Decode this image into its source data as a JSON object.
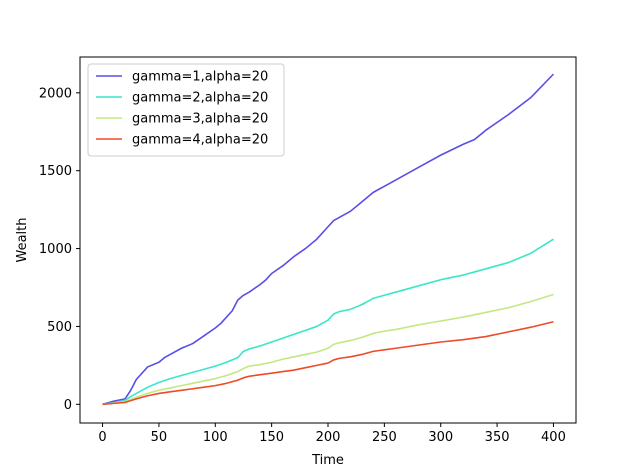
{
  "chart_data": {
    "type": "line",
    "title": "",
    "xlabel": "Time",
    "ylabel": "Wealth",
    "xlim": [
      -20,
      420
    ],
    "ylim": [
      -120,
      2230
    ],
    "xticks": [
      0,
      50,
      100,
      150,
      200,
      250,
      300,
      350,
      400
    ],
    "yticks": [
      0,
      500,
      1000,
      1500,
      2000
    ],
    "grid": false,
    "legend_position": "top-left",
    "series": [
      {
        "name": "gamma=1,alpha=20",
        "color": "#5a4ee6",
        "x": [
          0,
          10,
          20,
          25,
          30,
          40,
          50,
          55,
          60,
          70,
          80,
          90,
          100,
          105,
          110,
          115,
          120,
          125,
          130,
          140,
          145,
          150,
          160,
          170,
          180,
          190,
          200,
          205,
          210,
          220,
          230,
          240,
          250,
          260,
          280,
          300,
          320,
          330,
          340,
          360,
          380,
          400
        ],
        "y": [
          0,
          20,
          35,
          90,
          160,
          240,
          270,
          300,
          320,
          360,
          390,
          440,
          490,
          520,
          560,
          600,
          670,
          700,
          720,
          770,
          800,
          840,
          890,
          950,
          1000,
          1060,
          1140,
          1180,
          1200,
          1240,
          1300,
          1360,
          1400,
          1440,
          1520,
          1600,
          1670,
          1700,
          1760,
          1860,
          1970,
          2120
        ]
      },
      {
        "name": "gamma=2,alpha=20",
        "color": "#3be6c8",
        "x": [
          0,
          10,
          20,
          25,
          30,
          40,
          50,
          60,
          70,
          80,
          90,
          100,
          110,
          120,
          125,
          130,
          140,
          150,
          160,
          170,
          180,
          190,
          200,
          205,
          210,
          220,
          230,
          240,
          250,
          260,
          280,
          300,
          320,
          330,
          340,
          360,
          380,
          400
        ],
        "y": [
          0,
          10,
          25,
          50,
          70,
          110,
          140,
          165,
          185,
          205,
          225,
          245,
          270,
          300,
          340,
          355,
          375,
          400,
          425,
          450,
          475,
          500,
          540,
          580,
          595,
          610,
          640,
          680,
          700,
          720,
          760,
          800,
          830,
          850,
          870,
          910,
          970,
          1060
        ]
      },
      {
        "name": "gamma=3,alpha=20",
        "color": "#c2e882",
        "x": [
          0,
          10,
          20,
          30,
          40,
          50,
          60,
          70,
          80,
          90,
          100,
          110,
          120,
          125,
          130,
          140,
          150,
          160,
          170,
          180,
          190,
          200,
          205,
          210,
          220,
          230,
          240,
          250,
          260,
          280,
          300,
          320,
          340,
          360,
          380,
          400
        ],
        "y": [
          0,
          8,
          18,
          45,
          70,
          90,
          105,
          120,
          135,
          150,
          165,
          185,
          210,
          230,
          245,
          255,
          270,
          290,
          305,
          320,
          335,
          360,
          385,
          395,
          410,
          430,
          455,
          470,
          480,
          510,
          535,
          560,
          590,
          620,
          660,
          705
        ]
      },
      {
        "name": "gamma=4,alpha=20",
        "color": "#ee4a2a",
        "x": [
          0,
          10,
          20,
          30,
          40,
          50,
          60,
          70,
          80,
          90,
          100,
          110,
          120,
          125,
          130,
          140,
          150,
          160,
          170,
          180,
          190,
          200,
          205,
          210,
          220,
          230,
          240,
          250,
          260,
          280,
          300,
          320,
          340,
          360,
          380,
          400
        ],
        "y": [
          0,
          6,
          12,
          35,
          55,
          70,
          80,
          90,
          100,
          110,
          120,
          135,
          155,
          170,
          180,
          190,
          200,
          210,
          220,
          235,
          250,
          265,
          285,
          295,
          305,
          320,
          340,
          350,
          360,
          380,
          400,
          415,
          435,
          465,
          495,
          530
        ]
      }
    ]
  }
}
